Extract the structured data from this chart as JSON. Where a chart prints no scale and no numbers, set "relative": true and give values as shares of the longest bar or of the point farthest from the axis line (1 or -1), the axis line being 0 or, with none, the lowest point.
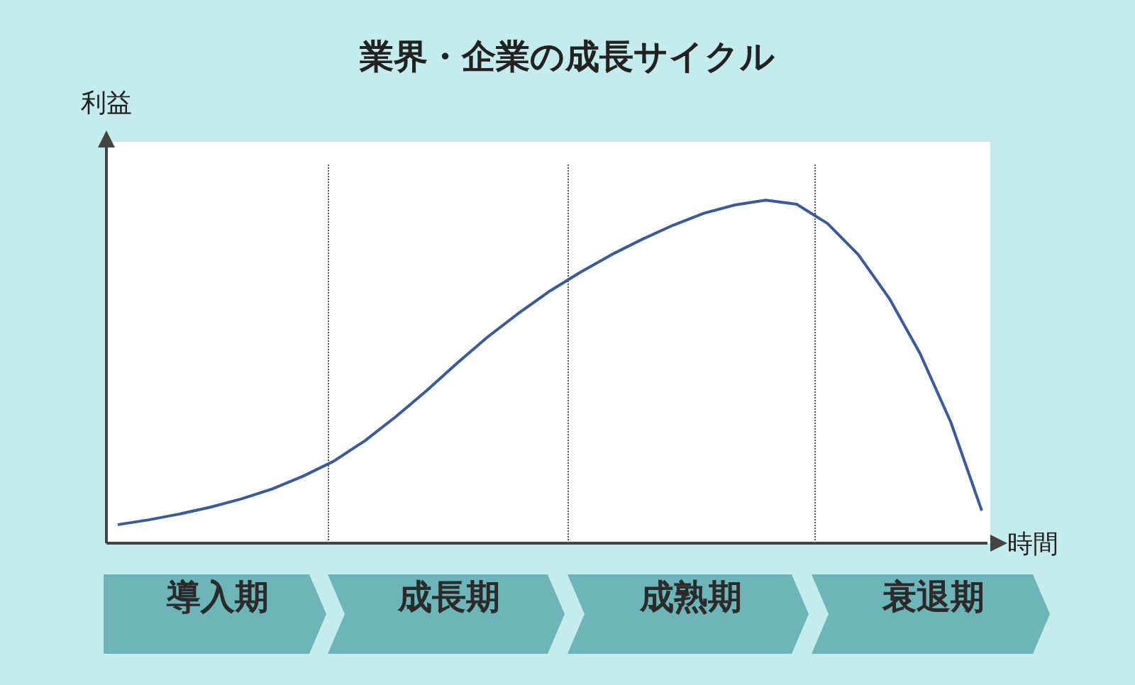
{
  "chart_data": {
    "type": "line",
    "title": "業界・企業の成長サイクル",
    "xlabel": "時間",
    "ylabel": "利益",
    "relative": true,
    "color": "#3a5a98",
    "categories": [
      null,
      null,
      null,
      null,
      null,
      null,
      null,
      null,
      null,
      null,
      null,
      null,
      null,
      null,
      null,
      null,
      null,
      null,
      null,
      null,
      null,
      null,
      null,
      null,
      null,
      null,
      null,
      null,
      null
    ],
    "values": [
      0.054,
      0.068,
      0.085,
      0.105,
      0.129,
      0.158,
      0.195,
      0.239,
      0.298,
      0.368,
      0.444,
      0.525,
      0.602,
      0.671,
      0.735,
      0.79,
      0.841,
      0.886,
      0.927,
      0.962,
      0.986,
      1,
      0.988,
      0.932,
      0.841,
      0.714,
      0.553,
      0.352,
      0.095
    ],
    "annotations": [
      "導入期",
      "成長期",
      "成熟期",
      "衰退期"
    ]
  }
}
